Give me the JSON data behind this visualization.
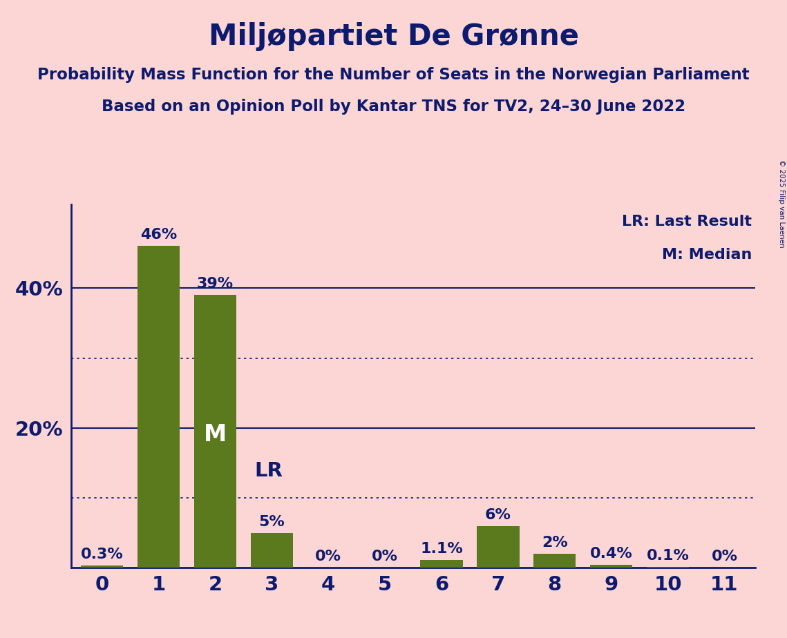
{
  "title": "Miljøpartiet De Grønne",
  "subtitle1": "Probability Mass Function for the Number of Seats in the Norwegian Parliament",
  "subtitle2": "Based on an Opinion Poll by Kantar TNS for TV2, 24–30 June 2022",
  "copyright": "© 2025 Filip van Laenen",
  "categories": [
    0,
    1,
    2,
    3,
    4,
    5,
    6,
    7,
    8,
    9,
    10,
    11
  ],
  "values": [
    0.3,
    46,
    39,
    5,
    0,
    0,
    1.1,
    6,
    2,
    0.4,
    0.1,
    0
  ],
  "bar_color": "#5b7a1e",
  "bg_color": "#fcd5d5",
  "text_color": "#0d1b6e",
  "title_fontsize": 30,
  "subtitle_fontsize": 16.5,
  "label_fontsize": 16,
  "ytick_fontsize": 21,
  "xtick_fontsize": 21,
  "bar_label_fontsize": 16,
  "median_seat": 2,
  "lr_seat": 3,
  "yticks": [
    20,
    40
  ],
  "dotted_lines": [
    10,
    30
  ],
  "ylim": [
    0,
    52
  ],
  "legend_text_lr": "LR: Last Result",
  "legend_text_m": "M: Median"
}
